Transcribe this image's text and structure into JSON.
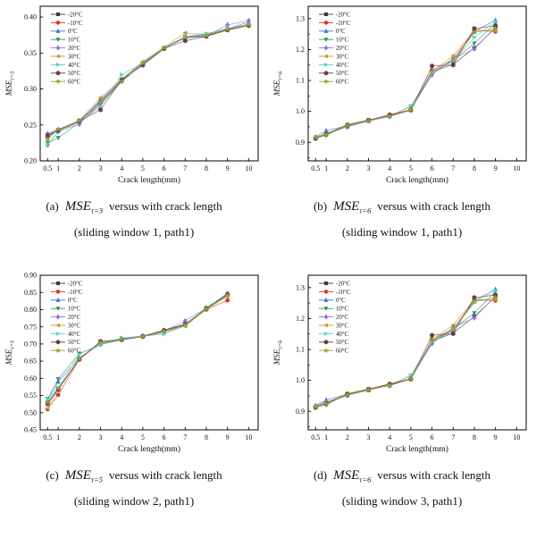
{
  "series_style": [
    {
      "label": "-20°C",
      "color": "#3a3a3a",
      "marker": "square"
    },
    {
      "label": "-10°C",
      "color": "#e03127",
      "marker": "circle"
    },
    {
      "label": "0°C",
      "color": "#4169e1",
      "marker": "triangle-up"
    },
    {
      "label": "10°C",
      "color": "#2e9960",
      "marker": "triangle-down"
    },
    {
      "label": "20°C",
      "color": "#8f6ee8",
      "marker": "diamond"
    },
    {
      "label": "30°C",
      "color": "#c09a28",
      "marker": "triangle-left"
    },
    {
      "label": "40°C",
      "color": "#4fd8c6",
      "marker": "triangle-right"
    },
    {
      "label": "50°C",
      "color": "#6b3a44",
      "marker": "hexagon"
    },
    {
      "label": "60°C",
      "color": "#9aa02e",
      "marker": "star"
    }
  ],
  "panels": [
    {
      "id": "a",
      "caption_prefix": "(a)",
      "caption_formula": "MSE",
      "caption_sub": "τ=3",
      "caption_rest": "versus with crack length",
      "caption_line2": "(sliding window 1, path1)"
    },
    {
      "id": "b",
      "caption_prefix": "(b)",
      "caption_formula": "MSE",
      "caption_sub": "τ=6",
      "caption_rest": "versus with crack length",
      "caption_line2": "(sliding window 1, path1)"
    },
    {
      "id": "c",
      "caption_prefix": "(c)",
      "caption_formula": "MSE",
      "caption_sub": "τ=5",
      "caption_rest": "versus with crack length",
      "caption_line2": "(sliding window 2, path1)"
    },
    {
      "id": "d",
      "caption_prefix": "(d)",
      "caption_formula": "MSE",
      "caption_sub": "τ=6",
      "caption_rest": "versus with crack length",
      "caption_line2": "(sliding window 3, path1)"
    }
  ],
  "chart_data": [
    {
      "type": "line",
      "xlabel": "Crack length(mm)",
      "ylabel_main": "MSE",
      "ylabel_sub": "τ=3",
      "legend_position": "top-left",
      "xlim": [
        0.15,
        10.45
      ],
      "ylim": [
        0.2,
        0.415
      ],
      "xticks": [
        0.5,
        1,
        2,
        3,
        4,
        5,
        6,
        7,
        8,
        9,
        10
      ],
      "xtick_labels": [
        "0.5",
        "1",
        "2",
        "3",
        "4",
        "5",
        "6",
        "7",
        "8",
        "9",
        "10"
      ],
      "yticks": [
        0.2,
        0.25,
        0.3,
        0.35,
        0.4
      ],
      "ytick_labels": [
        "0.20",
        "0.25",
        "0.30",
        "0.35",
        "0.40"
      ],
      "x": [
        0.5,
        1,
        2,
        3,
        4,
        5,
        6,
        7,
        8,
        9,
        10
      ],
      "series": [
        {
          "name": "-20°C",
          "values": [
            0.236,
            0.243,
            0.256,
            0.283,
            0.312,
            0.334,
            0.357,
            0.371,
            0.373,
            0.382,
            0.389
          ]
        },
        {
          "name": "-10°C",
          "values": [
            0.234,
            0.242,
            0.255,
            0.28,
            0.311,
            0.336,
            0.357,
            0.372,
            0.374,
            0.382,
            0.389
          ]
        },
        {
          "name": "0°C",
          "values": [
            0.238,
            0.244,
            0.254,
            0.285,
            0.313,
            0.337,
            0.357,
            0.373,
            0.376,
            0.384,
            0.393
          ]
        },
        {
          "name": "10°C",
          "values": [
            0.225,
            0.232,
            0.253,
            0.278,
            0.31,
            0.335,
            0.356,
            0.372,
            0.375,
            0.383,
            0.39
          ]
        },
        {
          "name": "20°C",
          "values": [
            0.222,
            0.241,
            0.251,
            0.281,
            0.312,
            0.334,
            0.356,
            0.371,
            0.374,
            0.389,
            0.395
          ]
        },
        {
          "name": "30°C",
          "values": [
            0.232,
            0.243,
            0.256,
            0.288,
            0.314,
            0.338,
            0.358,
            0.378,
            0.376,
            0.383,
            0.389
          ]
        },
        {
          "name": "40°C",
          "values": [
            0.223,
            0.24,
            0.254,
            0.275,
            0.32,
            0.336,
            0.357,
            0.373,
            0.377,
            0.384,
            0.39
          ]
        },
        {
          "name": "50°C",
          "values": [
            0.235,
            0.242,
            0.255,
            0.271,
            0.313,
            0.333,
            0.356,
            0.367,
            0.373,
            0.382,
            0.388
          ]
        },
        {
          "name": "60°C",
          "values": [
            0.23,
            0.244,
            0.256,
            0.282,
            0.311,
            0.336,
            0.357,
            0.372,
            0.374,
            0.383,
            0.389
          ]
        }
      ]
    },
    {
      "type": "line",
      "xlabel": "Crack length(mm)",
      "ylabel_main": "MSE",
      "ylabel_sub": "τ=6",
      "legend_position": "top-left",
      "xlim": [
        0.15,
        10.45
      ],
      "ylim": [
        0.84,
        1.34
      ],
      "xticks": [
        0.5,
        1,
        2,
        3,
        4,
        5,
        6,
        7,
        8,
        9,
        10
      ],
      "xtick_labels": [
        "0.5",
        "1",
        "2",
        "3",
        "4",
        "5",
        "6",
        "7",
        "8",
        "9",
        "10"
      ],
      "yticks": [
        0.9,
        1.0,
        1.1,
        1.2,
        1.3
      ],
      "ytick_labels": [
        "0.9",
        "1.0",
        "1.1",
        "1.2",
        "1.3"
      ],
      "y_minor_step": 0.05,
      "x": [
        0.5,
        1,
        2,
        3,
        4,
        5,
        6,
        7,
        8,
        9
      ],
      "series": [
        {
          "name": "-20°C",
          "values": [
            0.914,
            0.926,
            0.951,
            0.969,
            0.984,
            1.004,
            1.128,
            1.152,
            1.205,
            1.27
          ]
        },
        {
          "name": "-10°C",
          "values": [
            0.916,
            0.924,
            0.957,
            0.971,
            0.99,
            1.006,
            1.133,
            1.168,
            1.262,
            1.258
          ]
        },
        {
          "name": "0°C",
          "values": [
            0.918,
            0.938,
            0.954,
            0.97,
            0.984,
            1.005,
            1.124,
            1.163,
            1.258,
            1.295
          ]
        },
        {
          "name": "10°C",
          "values": [
            0.913,
            0.922,
            0.956,
            0.972,
            0.985,
            1.016,
            1.128,
            1.165,
            1.22,
            1.285
          ]
        },
        {
          "name": "20°C",
          "values": [
            0.917,
            0.93,
            0.95,
            0.97,
            0.983,
            1.006,
            1.118,
            1.17,
            1.202,
            1.272
          ]
        },
        {
          "name": "30°C",
          "values": [
            0.915,
            0.928,
            0.958,
            0.973,
            0.986,
            1.005,
            1.13,
            1.18,
            1.263,
            1.26
          ]
        },
        {
          "name": "40°C",
          "values": [
            0.916,
            0.929,
            0.953,
            0.97,
            0.984,
            1.018,
            1.125,
            1.163,
            1.24,
            1.29
          ]
        },
        {
          "name": "50°C",
          "values": [
            0.912,
            0.927,
            0.955,
            0.971,
            0.988,
            1.004,
            1.147,
            1.15,
            1.268,
            1.277
          ]
        },
        {
          "name": "60°C",
          "values": [
            0.915,
            0.925,
            0.955,
            0.97,
            0.985,
            1.005,
            1.128,
            1.165,
            1.255,
            1.268
          ]
        }
      ]
    },
    {
      "type": "line",
      "xlabel": "Crack length(mm)",
      "ylabel_main": "MSE",
      "ylabel_sub": "τ=5",
      "legend_position": "top-left",
      "xlim": [
        0.15,
        10.45
      ],
      "ylim": [
        0.45,
        0.9
      ],
      "xticks": [
        0.5,
        1,
        2,
        3,
        4,
        5,
        6,
        7,
        8,
        9,
        10
      ],
      "xtick_labels": [
        "0.5",
        "1",
        "2",
        "3",
        "4",
        "5",
        "6",
        "7",
        "8",
        "9",
        "10"
      ],
      "yticks": [
        0.45,
        0.5,
        0.55,
        0.6,
        0.65,
        0.7,
        0.75,
        0.8,
        0.85,
        0.9
      ],
      "ytick_labels": [
        "0.45",
        "0.50",
        "0.55",
        "0.60",
        "0.65",
        "0.70",
        "0.75",
        "0.80",
        "0.85",
        "0.90"
      ],
      "x": [
        0.5,
        1,
        2,
        3,
        4,
        5,
        6,
        7,
        8,
        9
      ],
      "series": [
        {
          "name": "-20°C",
          "values": [
            0.525,
            0.57,
            0.657,
            0.706,
            0.713,
            0.722,
            0.737,
            0.757,
            0.802,
            0.843
          ]
        },
        {
          "name": "-10°C",
          "values": [
            0.51,
            0.552,
            0.655,
            0.703,
            0.712,
            0.721,
            0.735,
            0.755,
            0.8,
            0.827
          ]
        },
        {
          "name": "0°C",
          "values": [
            0.535,
            0.59,
            0.66,
            0.7,
            0.714,
            0.723,
            0.74,
            0.757,
            0.804,
            0.848
          ]
        },
        {
          "name": "10°C",
          "values": [
            0.54,
            0.598,
            0.672,
            0.698,
            0.712,
            0.722,
            0.73,
            0.753,
            0.803,
            0.843
          ]
        },
        {
          "name": "20°C",
          "values": [
            0.527,
            0.57,
            0.658,
            0.705,
            0.716,
            0.724,
            0.738,
            0.767,
            0.805,
            0.84
          ]
        },
        {
          "name": "30°C",
          "values": [
            0.512,
            0.568,
            0.656,
            0.704,
            0.713,
            0.722,
            0.736,
            0.752,
            0.801,
            0.838
          ]
        },
        {
          "name": "40°C",
          "values": [
            0.538,
            0.572,
            0.67,
            0.699,
            0.718,
            0.723,
            0.729,
            0.754,
            0.807,
            0.844
          ]
        },
        {
          "name": "50°C",
          "values": [
            0.528,
            0.567,
            0.655,
            0.708,
            0.712,
            0.722,
            0.74,
            0.758,
            0.803,
            0.845
          ]
        },
        {
          "name": "60°C",
          "values": [
            0.53,
            0.571,
            0.657,
            0.705,
            0.713,
            0.722,
            0.737,
            0.755,
            0.802,
            0.842
          ]
        }
      ]
    },
    {
      "type": "line",
      "xlabel": "Crack length(mm)",
      "ylabel_main": "MSE",
      "ylabel_sub": "τ=6",
      "legend_position": "top-left",
      "xlim": [
        0.15,
        10.45
      ],
      "ylim": [
        0.84,
        1.34
      ],
      "xticks": [
        0.5,
        1,
        2,
        3,
        4,
        5,
        6,
        7,
        8,
        9,
        10
      ],
      "xtick_labels": [
        "0.5",
        "1",
        "2",
        "3",
        "4",
        "5",
        "6",
        "7",
        "8",
        "9",
        "10"
      ],
      "yticks": [
        0.9,
        1.0,
        1.1,
        1.2,
        1.3
      ],
      "ytick_labels": [
        "0.9",
        "1.0",
        "1.1",
        "1.2",
        "1.3"
      ],
      "y_minor_step": 0.05,
      "x": [
        0.5,
        1,
        2,
        3,
        4,
        5,
        6,
        7,
        8,
        9
      ],
      "series": [
        {
          "name": "-20°C",
          "values": [
            0.915,
            0.925,
            0.952,
            0.968,
            0.985,
            1.004,
            1.127,
            1.153,
            1.207,
            1.27
          ]
        },
        {
          "name": "-10°C",
          "values": [
            0.917,
            0.923,
            0.957,
            0.972,
            0.989,
            1.006,
            1.132,
            1.167,
            1.26,
            1.258
          ]
        },
        {
          "name": "0°C",
          "values": [
            0.919,
            0.937,
            0.955,
            0.97,
            0.983,
            1.005,
            1.123,
            1.162,
            1.257,
            1.295
          ]
        },
        {
          "name": "10°C",
          "values": [
            0.913,
            0.921,
            0.956,
            0.971,
            0.985,
            1.015,
            1.128,
            1.166,
            1.218,
            1.287
          ]
        },
        {
          "name": "20°C",
          "values": [
            0.918,
            0.931,
            0.951,
            0.97,
            0.983,
            1.006,
            1.119,
            1.171,
            1.202,
            1.273
          ]
        },
        {
          "name": "30°C",
          "values": [
            0.915,
            0.928,
            0.957,
            0.973,
            0.986,
            1.005,
            1.131,
            1.179,
            1.262,
            1.261
          ]
        },
        {
          "name": "40°C",
          "values": [
            0.916,
            0.929,
            0.953,
            0.969,
            0.984,
            1.017,
            1.124,
            1.164,
            1.251,
            1.291
          ]
        },
        {
          "name": "50°C",
          "values": [
            0.912,
            0.926,
            0.955,
            0.971,
            0.988,
            1.004,
            1.146,
            1.151,
            1.268,
            1.276
          ]
        },
        {
          "name": "60°C",
          "values": [
            0.914,
            0.925,
            0.954,
            0.97,
            0.985,
            1.005,
            1.127,
            1.164,
            1.254,
            1.269
          ]
        }
      ]
    }
  ]
}
